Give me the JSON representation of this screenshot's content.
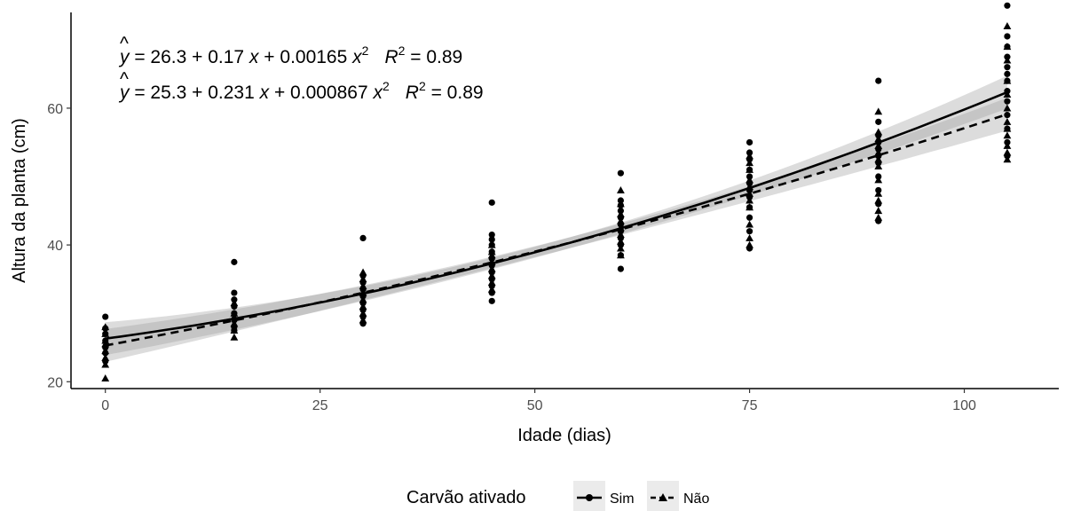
{
  "chart_data": {
    "type": "scatter",
    "xlabel": "Idade (dias)",
    "ylabel": "Altura da planta (cm)",
    "xlim": [
      -4,
      111
    ],
    "ylim": [
      19,
      74
    ],
    "x_ticks": [
      0,
      25,
      50,
      75,
      100
    ],
    "y_ticks": [
      20,
      40,
      60
    ],
    "grid": false,
    "legend": {
      "title": "Carvão ativado",
      "position": "bottom",
      "entries": [
        "Sim",
        "Não"
      ]
    },
    "equations": [
      {
        "yhat": "y",
        "lhs": " = 26.3 + 0.17 ",
        "x1": "x",
        "mid": " + 0.00165 ",
        "x2": "x",
        "exp": "2",
        "r": "R",
        "r_exp": "2",
        "r_val": " = 0.89"
      },
      {
        "yhat": "y",
        "lhs": " = 25.3 + 0.231 ",
        "x1": "x",
        "mid": " + 0.000867 ",
        "x2": "x",
        "exp": "2",
        "r": "R",
        "r_exp": "2",
        "r_val": " = 0.89"
      }
    ],
    "series": [
      {
        "name": "Sim",
        "marker": "circle",
        "line": "solid",
        "color": "#000000",
        "fit": {
          "a": 26.3,
          "b": 0.17,
          "c": 0.00165
        },
        "points": [
          [
            0,
            29.5
          ],
          [
            0,
            27.8
          ],
          [
            0,
            27.0
          ],
          [
            0,
            26.0
          ],
          [
            0,
            25.0
          ],
          [
            0,
            24.2
          ],
          [
            0,
            23.0
          ],
          [
            15,
            37.5
          ],
          [
            15,
            33.0
          ],
          [
            15,
            32.0
          ],
          [
            15,
            31.0
          ],
          [
            15,
            30.0
          ],
          [
            15,
            29.0
          ],
          [
            15,
            28.0
          ],
          [
            15,
            27.5
          ],
          [
            30,
            41.0
          ],
          [
            30,
            35.5
          ],
          [
            30,
            34.5
          ],
          [
            30,
            33.5
          ],
          [
            30,
            32.5
          ],
          [
            30,
            31.5
          ],
          [
            30,
            30.5
          ],
          [
            30,
            29.5
          ],
          [
            30,
            28.5
          ],
          [
            45,
            46.2
          ],
          [
            45,
            41.5
          ],
          [
            45,
            40.8
          ],
          [
            45,
            40.0
          ],
          [
            45,
            39.0
          ],
          [
            45,
            38.0
          ],
          [
            45,
            37.0
          ],
          [
            45,
            36.0
          ],
          [
            45,
            35.0
          ],
          [
            45,
            34.0
          ],
          [
            45,
            33.0
          ],
          [
            45,
            31.8
          ],
          [
            60,
            50.5
          ],
          [
            60,
            46.5
          ],
          [
            60,
            45.8
          ],
          [
            60,
            45.0
          ],
          [
            60,
            44.0
          ],
          [
            60,
            43.0
          ],
          [
            60,
            42.0
          ],
          [
            60,
            41.0
          ],
          [
            60,
            40.0
          ],
          [
            60,
            38.5
          ],
          [
            60,
            36.5
          ],
          [
            75,
            55.0
          ],
          [
            75,
            53.5
          ],
          [
            75,
            52.5
          ],
          [
            75,
            51.0
          ],
          [
            75,
            50.0
          ],
          [
            75,
            49.0
          ],
          [
            75,
            48.0
          ],
          [
            75,
            47.0
          ],
          [
            75,
            45.5
          ],
          [
            75,
            44.0
          ],
          [
            75,
            42.0
          ],
          [
            75,
            39.5
          ],
          [
            90,
            64.0
          ],
          [
            90,
            58.0
          ],
          [
            90,
            56.0
          ],
          [
            90,
            55.0
          ],
          [
            90,
            54.0
          ],
          [
            90,
            53.0
          ],
          [
            90,
            52.0
          ],
          [
            90,
            50.0
          ],
          [
            90,
            48.0
          ],
          [
            90,
            46.0
          ],
          [
            90,
            43.5
          ],
          [
            105,
            75.0
          ],
          [
            105,
            70.5
          ],
          [
            105,
            69.0
          ],
          [
            105,
            67.5
          ],
          [
            105,
            66.0
          ],
          [
            105,
            65.0
          ],
          [
            105,
            64.0
          ],
          [
            105,
            62.5
          ],
          [
            105,
            61.0
          ],
          [
            105,
            59.0
          ],
          [
            105,
            57.0
          ],
          [
            105,
            55.0
          ],
          [
            105,
            53.0
          ]
        ]
      },
      {
        "name": "Não",
        "marker": "triangle",
        "line": "dashed",
        "color": "#000000",
        "fit": {
          "a": 25.3,
          "b": 0.231,
          "c": 0.000867
        },
        "points": [
          [
            0,
            28.0
          ],
          [
            0,
            27.0
          ],
          [
            0,
            26.0
          ],
          [
            0,
            25.5
          ],
          [
            0,
            24.5
          ],
          [
            0,
            23.5
          ],
          [
            0,
            22.5
          ],
          [
            0,
            20.5
          ],
          [
            15,
            31.5
          ],
          [
            15,
            30.0
          ],
          [
            15,
            29.5
          ],
          [
            15,
            28.5
          ],
          [
            15,
            27.5
          ],
          [
            15,
            26.5
          ],
          [
            30,
            36.0
          ],
          [
            30,
            35.0
          ],
          [
            30,
            34.0
          ],
          [
            30,
            33.0
          ],
          [
            30,
            32.0
          ],
          [
            30,
            31.0
          ],
          [
            30,
            30.0
          ],
          [
            30,
            29.0
          ],
          [
            45,
            40.0
          ],
          [
            45,
            39.0
          ],
          [
            45,
            38.5
          ],
          [
            45,
            37.5
          ],
          [
            45,
            36.5
          ],
          [
            45,
            35.5
          ],
          [
            45,
            34.5
          ],
          [
            45,
            33.5
          ],
          [
            60,
            48.0
          ],
          [
            60,
            46.0
          ],
          [
            60,
            44.5
          ],
          [
            60,
            43.5
          ],
          [
            60,
            42.5
          ],
          [
            60,
            41.5
          ],
          [
            60,
            40.5
          ],
          [
            60,
            39.5
          ],
          [
            60,
            38.5
          ],
          [
            75,
            53.0
          ],
          [
            75,
            52.0
          ],
          [
            75,
            51.0
          ],
          [
            75,
            49.5
          ],
          [
            75,
            48.5
          ],
          [
            75,
            47.5
          ],
          [
            75,
            46.5
          ],
          [
            75,
            45.5
          ],
          [
            75,
            43.0
          ],
          [
            75,
            41.0
          ],
          [
            75,
            40.0
          ],
          [
            90,
            59.5
          ],
          [
            90,
            56.5
          ],
          [
            90,
            55.5
          ],
          [
            90,
            54.5
          ],
          [
            90,
            53.5
          ],
          [
            90,
            52.5
          ],
          [
            90,
            51.5
          ],
          [
            90,
            49.5
          ],
          [
            90,
            47.5
          ],
          [
            90,
            46.5
          ],
          [
            90,
            45.0
          ],
          [
            90,
            44.0
          ],
          [
            105,
            72.0
          ],
          [
            105,
            69.0
          ],
          [
            105,
            67.0
          ],
          [
            105,
            64.0
          ],
          [
            105,
            62.0
          ],
          [
            105,
            60.0
          ],
          [
            105,
            58.0
          ],
          [
            105,
            57.0
          ],
          [
            105,
            56.0
          ],
          [
            105,
            54.5
          ],
          [
            105,
            53.5
          ],
          [
            105,
            52.5
          ]
        ]
      }
    ]
  }
}
